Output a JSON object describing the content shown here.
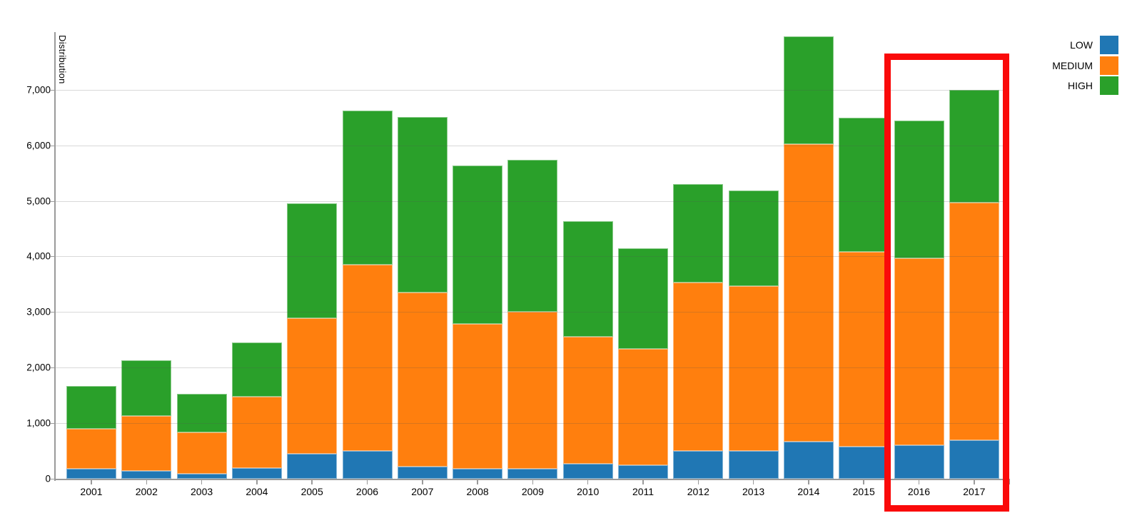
{
  "chart_data": {
    "type": "bar",
    "stacked": true,
    "title": "",
    "xlabel": "",
    "ylabel": "Distribution",
    "categories": [
      "2001",
      "2002",
      "2003",
      "2004",
      "2005",
      "2006",
      "2007",
      "2008",
      "2009",
      "2010",
      "2011",
      "2012",
      "2013",
      "2014",
      "2015",
      "2016",
      "2017"
    ],
    "series": [
      {
        "name": "LOW",
        "color": "#2077b4",
        "values": [
          185,
          145,
          95,
          195,
          450,
          500,
          215,
          180,
          185,
          270,
          245,
          500,
          495,
          665,
          580,
          605,
          695
        ]
      },
      {
        "name": "MEDIUM",
        "color": "#ff7f0e",
        "values": [
          710,
          985,
          735,
          1285,
          2440,
          3350,
          3135,
          2610,
          2825,
          2280,
          2085,
          3030,
          2965,
          5355,
          3500,
          3365,
          4275
        ]
      },
      {
        "name": "HIGH",
        "color": "#2aa02a",
        "values": [
          780,
          1000,
          700,
          970,
          2060,
          2770,
          3160,
          2840,
          2730,
          2090,
          1810,
          1770,
          1730,
          1940,
          2420,
          2470,
          2030
        ]
      }
    ],
    "totals": [
      1675,
      2130,
      1530,
      2450,
      4950,
      6620,
      6510,
      5630,
      5740,
      4640,
      4140,
      5300,
      5190,
      7960,
      6500,
      6440,
      7000
    ],
    "ylim": [
      0,
      8000
    ],
    "y_tick_values": [
      0,
      1000,
      2000,
      3000,
      4000,
      5000,
      6000,
      7000
    ],
    "y_tick_labels": [
      "0",
      "1,000",
      "2,000",
      "3,000",
      "4,000",
      "5,000",
      "6,000",
      "7,000"
    ],
    "grid": true,
    "legend_position": "top-right",
    "annotation": {
      "type": "highlight-box",
      "categories_highlighted": [
        "2016",
        "2017"
      ],
      "color": "#fa0a0a"
    }
  },
  "legend": {
    "items": [
      {
        "label": "LOW",
        "color": "#2077b4"
      },
      {
        "label": "MEDIUM",
        "color": "#ff7f0e"
      },
      {
        "label": "HIGH",
        "color": "#2aa02a"
      }
    ]
  }
}
